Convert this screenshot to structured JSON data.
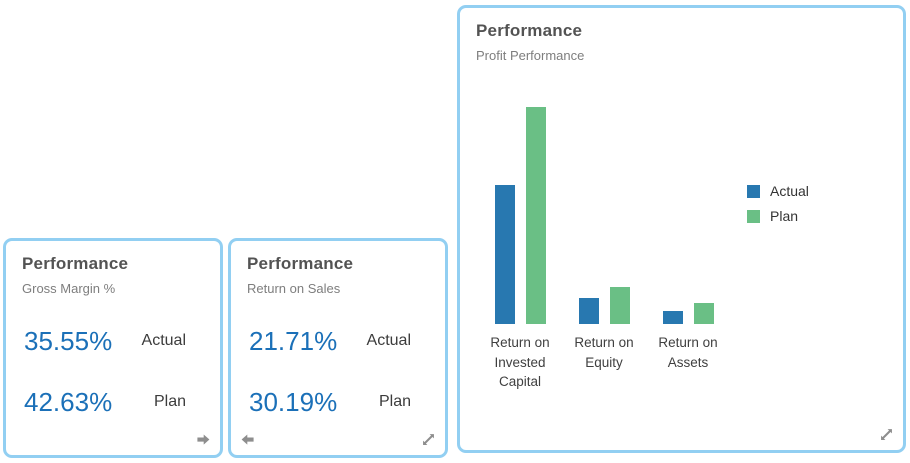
{
  "colors": {
    "tile_border": "#92cff2",
    "kpi_value_blue": "#1b70b8",
    "bar_actual_blue": "#2878b0",
    "bar_plan_green": "#6abf85",
    "icon_gray": "#8e8e8e"
  },
  "tiles": {
    "gross_margin": {
      "title": "Performance",
      "subtitle": "Gross Margin %",
      "kpis": [
        {
          "value": "35.55%",
          "label": "Actual"
        },
        {
          "value": "42.63%",
          "label": "Plan"
        }
      ],
      "icons": [
        "arrow-right-icon"
      ]
    },
    "return_on_sales": {
      "title": "Performance",
      "subtitle": "Return on Sales",
      "kpis": [
        {
          "value": "21.71%",
          "label": "Actual"
        },
        {
          "value": "30.19%",
          "label": "Plan"
        }
      ],
      "icons": [
        "arrow-left-icon",
        "resize-diagonal-icon"
      ]
    },
    "profit_performance": {
      "title": "Performance",
      "subtitle": "Profit Performance",
      "icons": [
        "resize-diagonal-icon"
      ]
    }
  },
  "chart_data": {
    "type": "bar",
    "title": "Performance",
    "subtitle": "Profit Performance",
    "categories": [
      "Return on Invested Capital",
      "Return on Equity",
      "Return on Assets"
    ],
    "series": [
      {
        "name": "Actual",
        "color": "#2878b0",
        "values": [
          13.9,
          2.6,
          1.3
        ]
      },
      {
        "name": "Plan",
        "color": "#6abf85",
        "values": [
          21.7,
          3.7,
          2.1
        ]
      }
    ],
    "xlabel": "",
    "ylabel": "",
    "ylim": [
      0,
      22.4
    ],
    "grid": false,
    "y_axis_ticks_visible": false,
    "legend_position": "right"
  }
}
